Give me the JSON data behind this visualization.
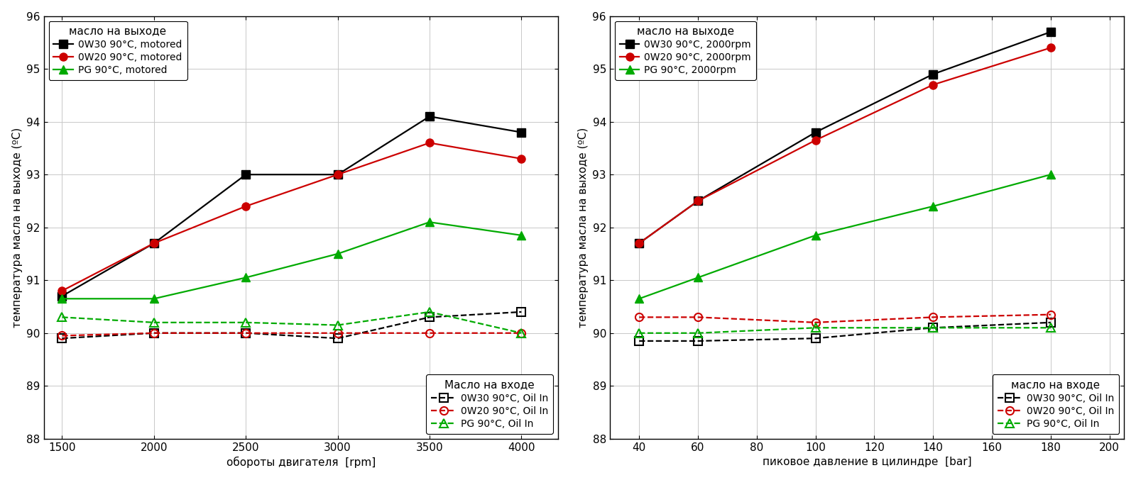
{
  "left": {
    "x": [
      1500,
      2000,
      2500,
      3000,
      3500,
      4000
    ],
    "out_0w30": [
      90.7,
      91.7,
      93.0,
      93.0,
      94.1,
      93.8
    ],
    "out_0w20": [
      90.8,
      91.7,
      92.4,
      93.0,
      93.6,
      93.3
    ],
    "out_pg": [
      90.65,
      90.65,
      91.05,
      91.5,
      92.1,
      91.85
    ],
    "in_0w30": [
      89.9,
      90.0,
      90.0,
      89.9,
      90.3,
      90.4
    ],
    "in_0w20": [
      89.95,
      90.0,
      90.0,
      90.0,
      90.0,
      90.0
    ],
    "in_pg": [
      90.3,
      90.2,
      90.2,
      90.15,
      90.4,
      90.0
    ],
    "xlabel": "обороты двигателя  [rpm]",
    "xlim": [
      1400,
      4200
    ],
    "xticks": [
      1500,
      2000,
      2500,
      3000,
      3500,
      4000
    ],
    "legend_out_title": "масло на выходе",
    "legend_in_title": "Масло на входе",
    "label_out_0w30": "0W30 90°C, motored",
    "label_out_0w20": "0W20 90°C, motored",
    "label_out_pg": "PG 90°C, motored",
    "label_in_0w30": "0W30 90°C, Oil In",
    "label_in_0w20": "0W20 90°C, Oil In",
    "label_in_pg": "PG 90°C, Oil In"
  },
  "right": {
    "x": [
      40,
      60,
      100,
      140,
      180
    ],
    "out_0w30": [
      91.7,
      92.5,
      93.8,
      94.9,
      95.7
    ],
    "out_0w20": [
      91.7,
      92.5,
      93.65,
      94.7,
      95.4
    ],
    "out_pg": [
      90.65,
      91.05,
      91.85,
      92.4,
      93.0
    ],
    "in_0w30": [
      89.85,
      89.85,
      89.9,
      90.1,
      90.2
    ],
    "in_0w20": [
      90.3,
      90.3,
      90.2,
      90.3,
      90.35
    ],
    "in_pg": [
      90.0,
      90.0,
      90.1,
      90.1,
      90.1
    ],
    "xlabel": "пиковое давление в цилиндре  [bar]",
    "xlim": [
      30,
      205
    ],
    "xticks": [
      40,
      60,
      80,
      100,
      120,
      140,
      160,
      180,
      200
    ],
    "legend_out_title": "масло на выходе",
    "legend_in_title": "масло на входе",
    "label_out_0w30": "0W30 90°C, 2000rpm",
    "label_out_0w20": "0W20 90°C, 2000rpm",
    "label_out_pg": "PG 90°C, 2000rpm",
    "label_in_0w30": "0W30 90°C, Oil In",
    "label_in_0w20": "0W20 90°C, Oil In",
    "label_in_pg": "PG 90°C, Oil In"
  },
  "ylabel": "температура масла на выходе (ºC)",
  "ylim": [
    88,
    96
  ],
  "yticks": [
    88,
    89,
    90,
    91,
    92,
    93,
    94,
    95,
    96
  ],
  "color_0w30": "#000000",
  "color_0w20": "#cc0000",
  "color_pg": "#00aa00",
  "bg_color": "#ffffff",
  "grid_color": "#c8c8c8"
}
